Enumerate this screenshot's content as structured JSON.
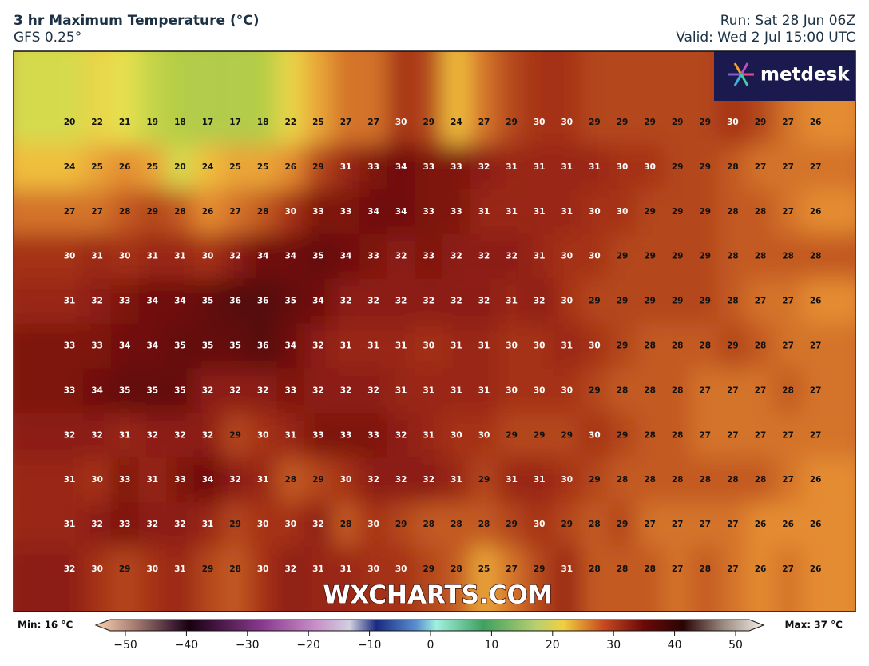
{
  "header": {
    "title": "3 hr Maximum Temperature (°C)",
    "model": "GFS 0.25°",
    "run": "Run: Sat 28 Jun 06Z",
    "valid": "Valid: Wed 2 Jul 15:00 UTC"
  },
  "logo": "metdesk",
  "watermark": "WXCHARTS.COM",
  "map": {
    "values": [
      [
        20,
        22,
        21,
        19,
        18,
        17,
        17,
        18,
        22,
        25,
        27,
        27,
        30,
        29,
        24,
        27,
        29,
        30,
        30,
        29,
        29,
        29,
        29,
        29,
        30,
        29,
        27,
        26
      ],
      [
        24,
        25,
        26,
        25,
        20,
        24,
        25,
        25,
        26,
        29,
        31,
        33,
        34,
        33,
        33,
        32,
        31,
        31,
        31,
        31,
        30,
        30,
        29,
        29,
        28,
        27,
        27,
        27
      ],
      [
        27,
        27,
        28,
        29,
        28,
        26,
        27,
        28,
        30,
        33,
        33,
        34,
        34,
        33,
        33,
        31,
        31,
        31,
        31,
        30,
        30,
        29,
        29,
        29,
        28,
        28,
        27,
        26
      ],
      [
        30,
        31,
        30,
        31,
        31,
        30,
        32,
        34,
        34,
        35,
        34,
        33,
        32,
        33,
        32,
        32,
        32,
        31,
        30,
        30,
        29,
        29,
        29,
        29,
        28,
        28,
        28,
        28
      ],
      [
        31,
        32,
        33,
        34,
        34,
        35,
        36,
        36,
        35,
        34,
        32,
        32,
        32,
        32,
        32,
        32,
        31,
        32,
        30,
        29,
        29,
        29,
        29,
        29,
        28,
        27,
        27,
        26
      ],
      [
        33,
        33,
        34,
        34,
        35,
        35,
        35,
        36,
        34,
        32,
        31,
        31,
        31,
        30,
        31,
        31,
        30,
        30,
        31,
        30,
        29,
        28,
        28,
        28,
        29,
        28,
        27,
        27
      ],
      [
        33,
        34,
        35,
        35,
        35,
        32,
        32,
        32,
        33,
        32,
        32,
        32,
        31,
        31,
        31,
        31,
        30,
        30,
        30,
        29,
        28,
        28,
        28,
        27,
        27,
        27,
        28,
        27
      ],
      [
        32,
        32,
        31,
        32,
        32,
        32,
        29,
        30,
        31,
        33,
        33,
        33,
        32,
        31,
        30,
        30,
        29,
        29,
        29,
        30,
        29,
        28,
        28,
        27,
        27,
        27,
        27,
        27
      ],
      [
        31,
        30,
        33,
        31,
        33,
        34,
        32,
        31,
        28,
        29,
        30,
        32,
        32,
        32,
        31,
        29,
        31,
        31,
        30,
        29,
        28,
        28,
        28,
        28,
        28,
        28,
        27,
        26
      ],
      [
        31,
        32,
        33,
        32,
        32,
        31,
        29,
        30,
        30,
        32,
        28,
        30,
        29,
        28,
        28,
        28,
        29,
        30,
        29,
        28,
        29,
        27,
        27,
        27,
        27,
        26,
        26,
        26
      ],
      [
        32,
        30,
        29,
        30,
        31,
        29,
        28,
        30,
        32,
        31,
        31,
        30,
        30,
        29,
        28,
        25,
        27,
        29,
        31,
        28,
        28,
        28,
        27,
        28,
        27,
        26,
        27,
        26
      ]
    ]
  },
  "colorbar": {
    "min_label": "Min: 16 °C",
    "max_label": "Max: 37 °C",
    "ticks": [
      {
        "value": -50,
        "label": "−50"
      },
      {
        "value": -40,
        "label": "−40"
      },
      {
        "value": -30,
        "label": "−30"
      },
      {
        "value": -20,
        "label": "−20"
      },
      {
        "value": -10,
        "label": "−10"
      },
      0,
      10,
      20,
      30,
      40,
      50
    ]
  }
}
